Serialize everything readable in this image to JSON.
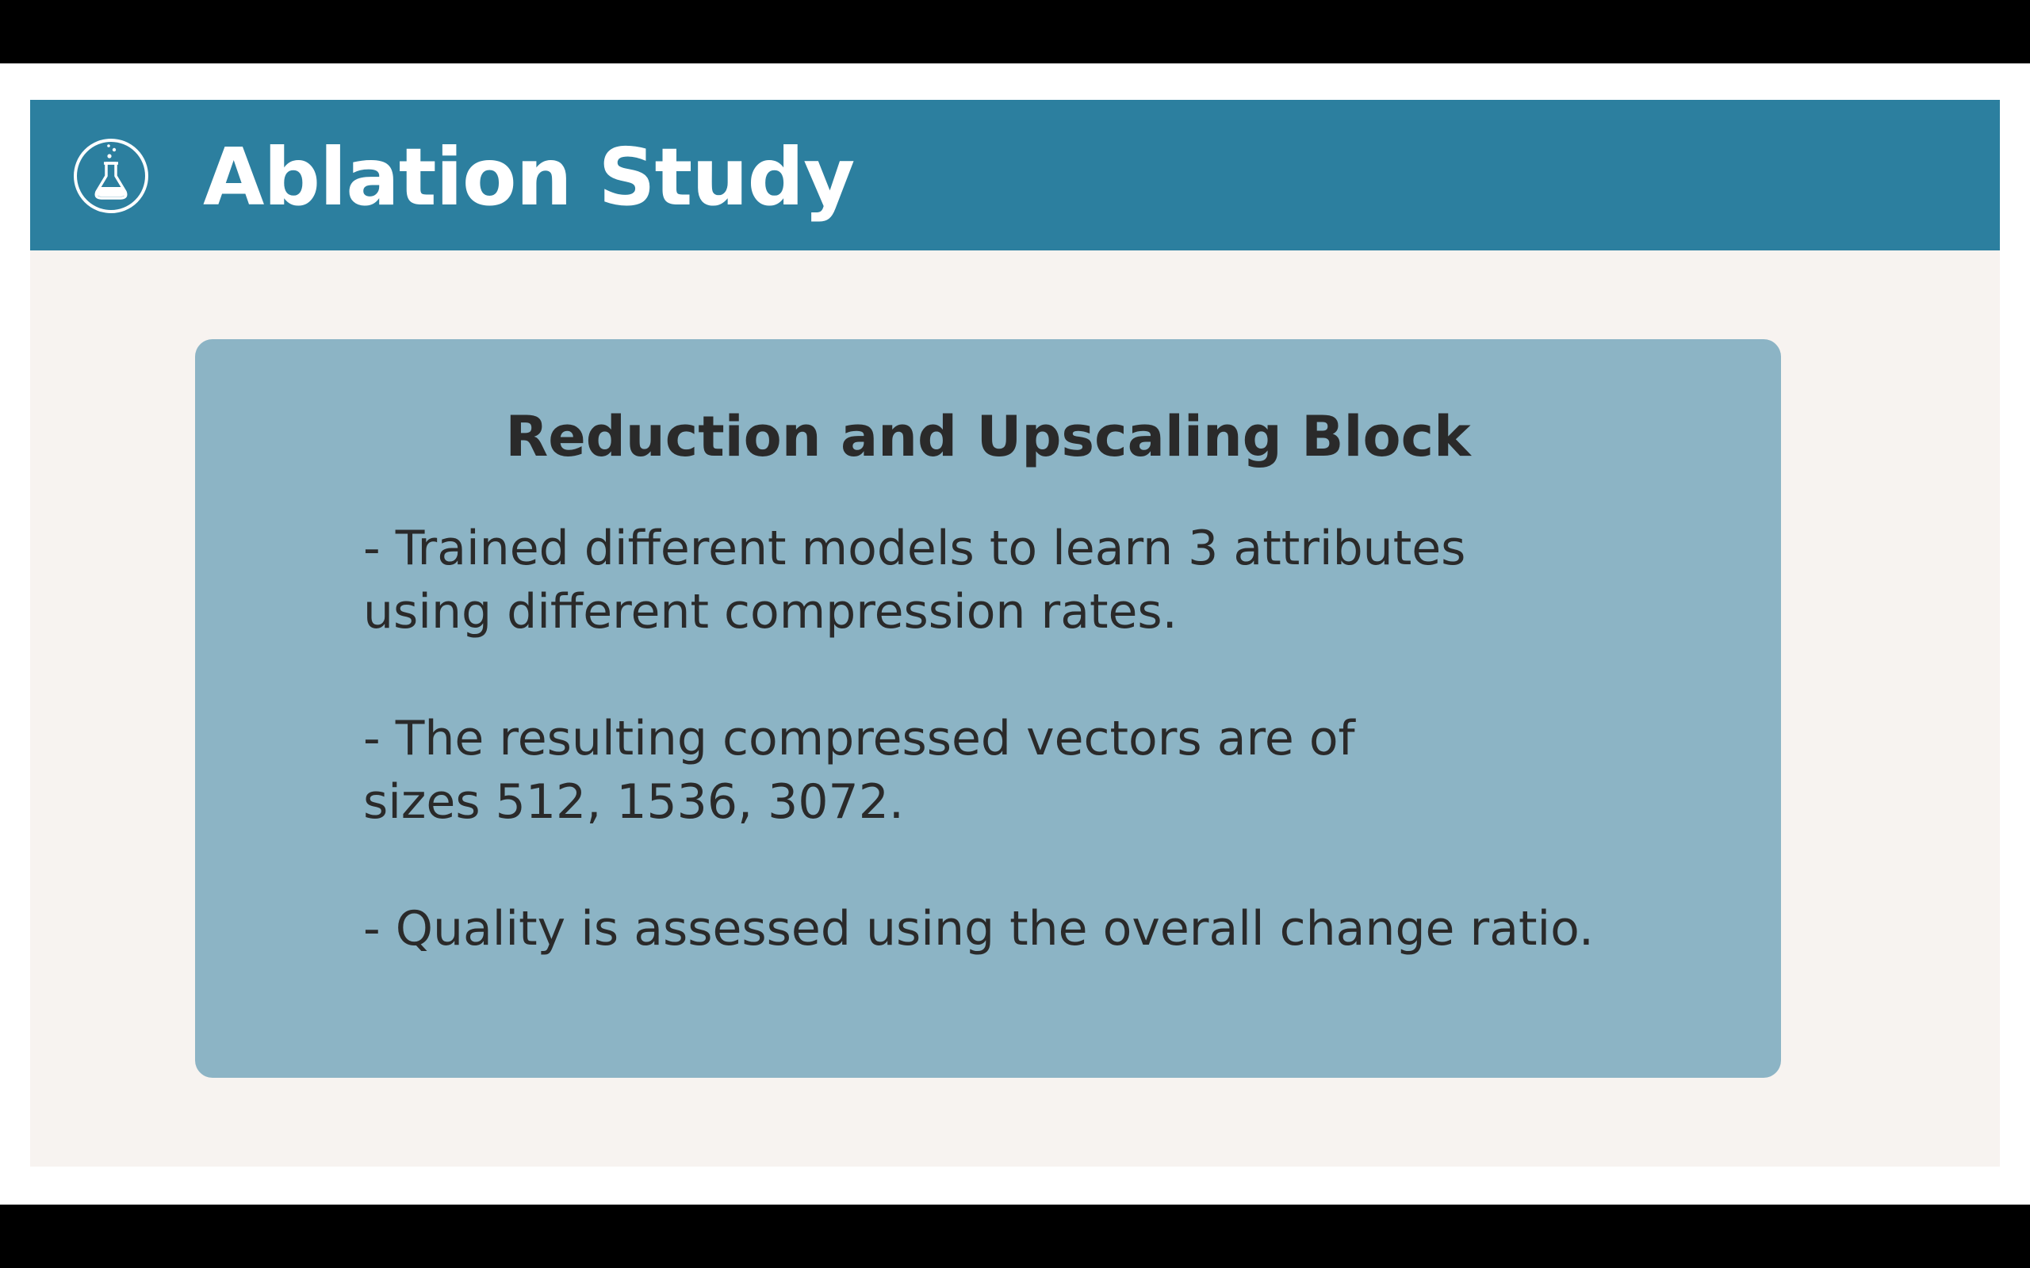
{
  "slide": {
    "title": "Ablation Study",
    "icon": "flask-icon",
    "colors": {
      "header": "#2c7f9f",
      "card": "#8cb4c5",
      "background": "#f7f3f0",
      "text": "#2a2a2a"
    }
  },
  "card": {
    "heading": "Reduction and Upscaling Block",
    "bullets": [
      {
        "lines": [
          "- Trained different models to learn 3 attributes",
          "using different compression rates."
        ]
      },
      {
        "lines": [
          "- The resulting compressed vectors are of",
          "sizes 512, 1536, 3072."
        ]
      },
      {
        "lines": [
          "- Quality is assessed using the overall change ratio."
        ]
      }
    ]
  }
}
